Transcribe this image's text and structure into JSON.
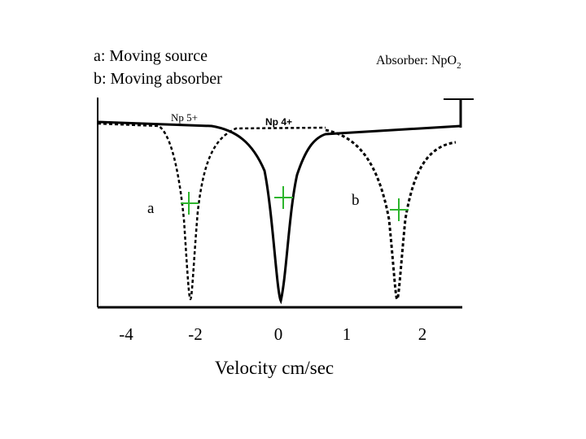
{
  "legend_lines": [
    "a: Moving source",
    "b: Moving absorber"
  ],
  "absorber": {
    "text": "Absorber:  NpO",
    "subscript": "2"
  },
  "peak_labels": [
    "Np 5+",
    "Np 4+"
  ],
  "curve_labels": [
    "a",
    "b"
  ],
  "x_tick_labels": [
    "-4",
    "-2",
    "0",
    "1",
    "2"
  ],
  "x_axis_label": "Velocity cm/sec"
}
